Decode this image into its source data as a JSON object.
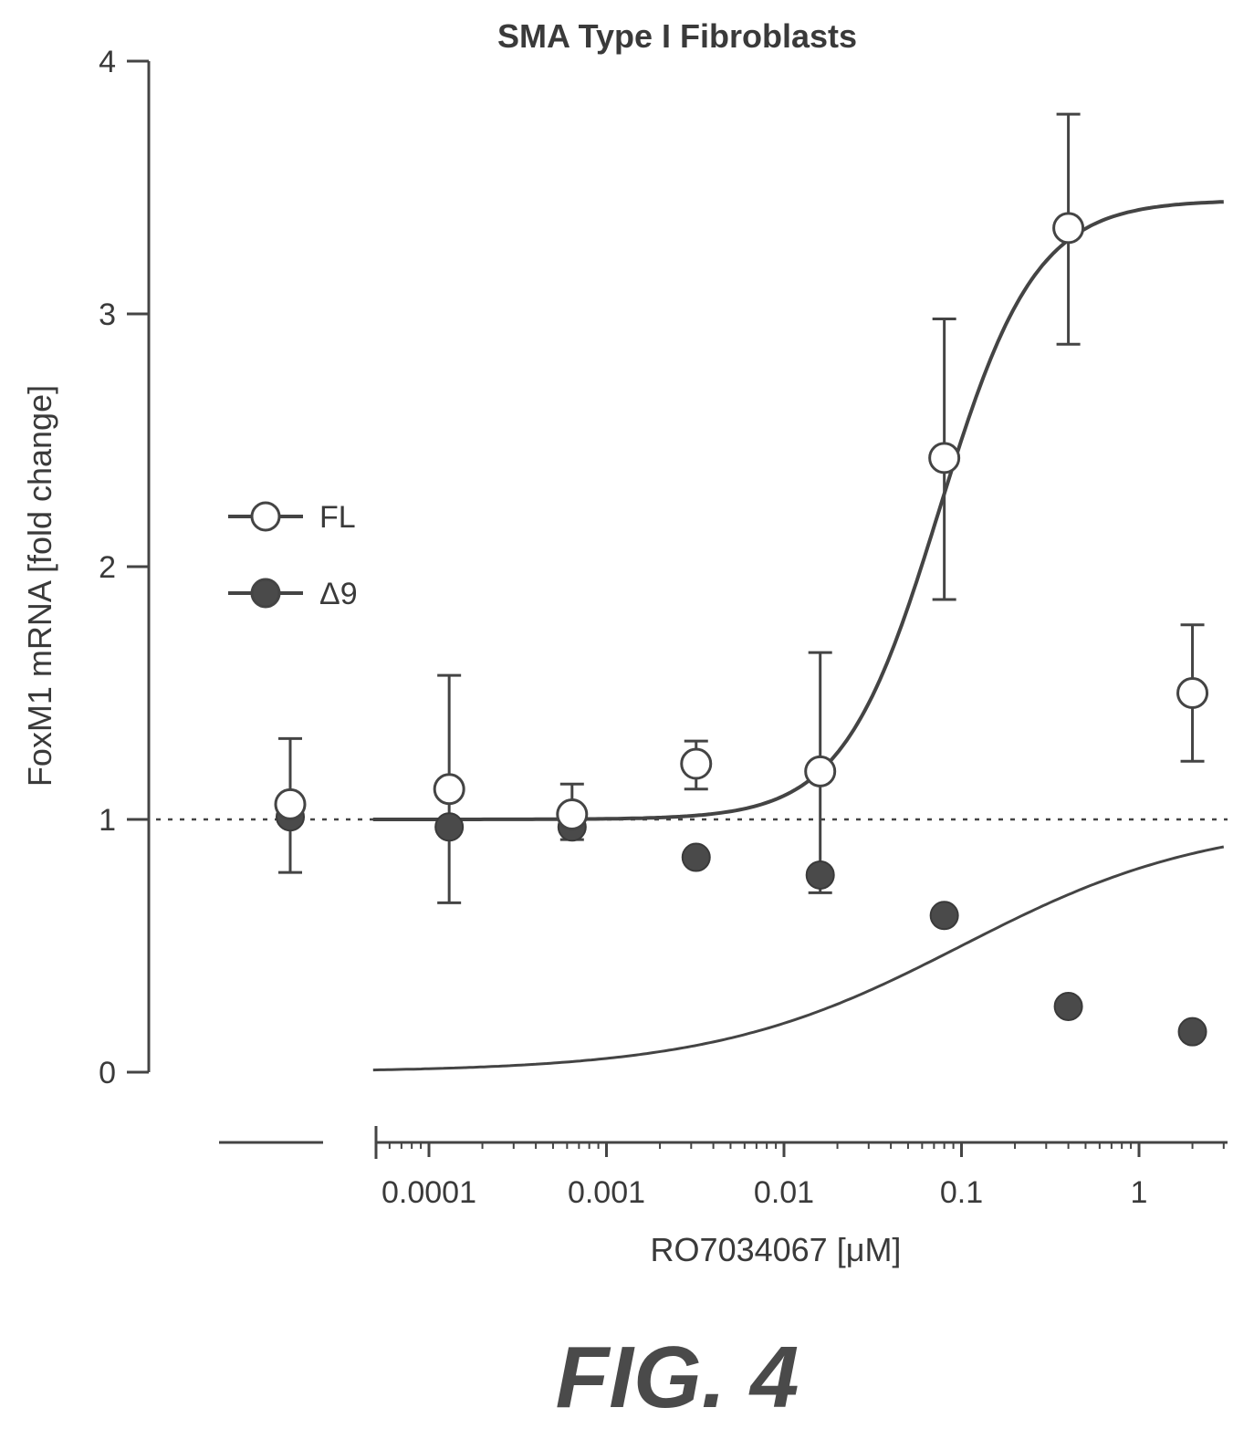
{
  "figure_label": "FIG. 4",
  "chart_data": {
    "type": "scatter",
    "title": "SMA Type I Fibroblasts",
    "xlabel": "RO7034067 [μM]",
    "ylabel": "FoxM1 mRNA [fold change]",
    "x_scale": "log",
    "xlim": [
      3e-05,
      3
    ],
    "ylim": [
      0,
      4
    ],
    "x_ticks": [
      0.0001,
      0.001,
      0.01,
      0.1,
      1
    ],
    "x_tick_labels": [
      "0.0001",
      "0.001",
      "0.01",
      "0.1",
      "1"
    ],
    "y_ticks": [
      0,
      1,
      2,
      3,
      4
    ],
    "y_tick_labels": [
      "0",
      "1",
      "2",
      "3",
      "4"
    ],
    "reference_line_y": 1,
    "legend_position": "left",
    "control_column": "untreated (axis-break segment)",
    "series": [
      {
        "name": "FL",
        "marker": "open-circle",
        "control": {
          "y": 1.06,
          "err_low": 0.79,
          "err_high": 1.32
        },
        "points": [
          {
            "x": 0.00013,
            "y": 1.12,
            "err_low": 0.67,
            "err_high": 1.57
          },
          {
            "x": 0.00064,
            "y": 1.02,
            "err_low": 0.92,
            "err_high": 1.14
          },
          {
            "x": 0.0032,
            "y": 1.22,
            "err_low": 1.12,
            "err_high": 1.31
          },
          {
            "x": 0.016,
            "y": 1.19,
            "err_low": 0.71,
            "err_high": 1.66
          },
          {
            "x": 0.08,
            "y": 2.43,
            "err_low": 1.87,
            "err_high": 2.98
          },
          {
            "x": 0.4,
            "y": 3.34,
            "err_low": 2.88,
            "err_high": 3.79
          },
          {
            "x": 2.0,
            "y": 1.5,
            "err_low": 1.23,
            "err_high": 1.77
          }
        ],
        "fit": {
          "bottom": 1.0,
          "top": 3.45,
          "ec50": 0.075,
          "hill": 1.6
        }
      },
      {
        "name": "Δ9",
        "marker": "filled-circle",
        "control": {
          "y": 1.01
        },
        "points": [
          {
            "x": 0.00013,
            "y": 0.97
          },
          {
            "x": 0.00064,
            "y": 0.97
          },
          {
            "x": 0.0032,
            "y": 0.85
          },
          {
            "x": 0.016,
            "y": 0.78
          },
          {
            "x": 0.08,
            "y": 0.62
          },
          {
            "x": 0.4,
            "y": 0.26
          },
          {
            "x": 2.0,
            "y": 0.16
          }
        ],
        "fit": {
          "bottom": 0.0,
          "top": 1.0,
          "ec50": 0.1,
          "hill": 0.62
        }
      }
    ]
  }
}
